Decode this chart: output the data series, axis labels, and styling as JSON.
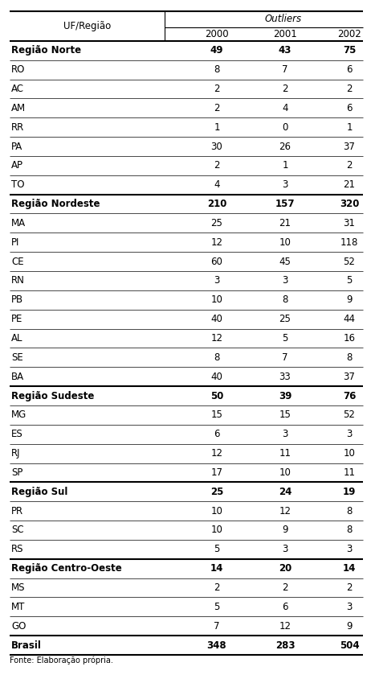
{
  "outliers_label": "Outliers",
  "header_years": [
    "2000",
    "2001",
    "2002"
  ],
  "rows": [
    {
      "label": "Região Norte",
      "bold": true,
      "v2000": "49",
      "v2001": "43",
      "v2002": "75",
      "region": true
    },
    {
      "label": "RO",
      "bold": false,
      "v2000": "8",
      "v2001": "7",
      "v2002": "6",
      "region": false
    },
    {
      "label": "AC",
      "bold": false,
      "v2000": "2",
      "v2001": "2",
      "v2002": "2",
      "region": false
    },
    {
      "label": "AM",
      "bold": false,
      "v2000": "2",
      "v2001": "4",
      "v2002": "6",
      "region": false
    },
    {
      "label": "RR",
      "bold": false,
      "v2000": "1",
      "v2001": "0",
      "v2002": "1",
      "region": false
    },
    {
      "label": "PA",
      "bold": false,
      "v2000": "30",
      "v2001": "26",
      "v2002": "37",
      "region": false
    },
    {
      "label": "AP",
      "bold": false,
      "v2000": "2",
      "v2001": "1",
      "v2002": "2",
      "region": false
    },
    {
      "label": "TO",
      "bold": false,
      "v2000": "4",
      "v2001": "3",
      "v2002": "21",
      "region": false
    },
    {
      "label": "Região Nordeste",
      "bold": true,
      "v2000": "210",
      "v2001": "157",
      "v2002": "320",
      "region": true
    },
    {
      "label": "MA",
      "bold": false,
      "v2000": "25",
      "v2001": "21",
      "v2002": "31",
      "region": false
    },
    {
      "label": "PI",
      "bold": false,
      "v2000": "12",
      "v2001": "10",
      "v2002": "118",
      "region": false
    },
    {
      "label": "CE",
      "bold": false,
      "v2000": "60",
      "v2001": "45",
      "v2002": "52",
      "region": false
    },
    {
      "label": "RN",
      "bold": false,
      "v2000": "3",
      "v2001": "3",
      "v2002": "5",
      "region": false
    },
    {
      "label": "PB",
      "bold": false,
      "v2000": "10",
      "v2001": "8",
      "v2002": "9",
      "region": false
    },
    {
      "label": "PE",
      "bold": false,
      "v2000": "40",
      "v2001": "25",
      "v2002": "44",
      "region": false
    },
    {
      "label": "AL",
      "bold": false,
      "v2000": "12",
      "v2001": "5",
      "v2002": "16",
      "region": false
    },
    {
      "label": "SE",
      "bold": false,
      "v2000": "8",
      "v2001": "7",
      "v2002": "8",
      "region": false
    },
    {
      "label": "BA",
      "bold": false,
      "v2000": "40",
      "v2001": "33",
      "v2002": "37",
      "region": false
    },
    {
      "label": "Região Sudeste",
      "bold": true,
      "v2000": "50",
      "v2001": "39",
      "v2002": "76",
      "region": true
    },
    {
      "label": "MG",
      "bold": false,
      "v2000": "15",
      "v2001": "15",
      "v2002": "52",
      "region": false
    },
    {
      "label": "ES",
      "bold": false,
      "v2000": "6",
      "v2001": "3",
      "v2002": "3",
      "region": false
    },
    {
      "label": "RJ",
      "bold": false,
      "v2000": "12",
      "v2001": "11",
      "v2002": "10",
      "region": false
    },
    {
      "label": "SP",
      "bold": false,
      "v2000": "17",
      "v2001": "10",
      "v2002": "11",
      "region": false
    },
    {
      "label": "Região Sul",
      "bold": true,
      "v2000": "25",
      "v2001": "24",
      "v2002": "19",
      "region": true
    },
    {
      "label": "PR",
      "bold": false,
      "v2000": "10",
      "v2001": "12",
      "v2002": "8",
      "region": false
    },
    {
      "label": "SC",
      "bold": false,
      "v2000": "10",
      "v2001": "9",
      "v2002": "8",
      "region": false
    },
    {
      "label": "RS",
      "bold": false,
      "v2000": "5",
      "v2001": "3",
      "v2002": "3",
      "region": false
    },
    {
      "label": "Região Centro-Oeste",
      "bold": true,
      "v2000": "14",
      "v2001": "20",
      "v2002": "14",
      "region": true
    },
    {
      "label": "MS",
      "bold": false,
      "v2000": "2",
      "v2001": "2",
      "v2002": "2",
      "region": false
    },
    {
      "label": "MT",
      "bold": false,
      "v2000": "5",
      "v2001": "6",
      "v2002": "3",
      "region": false
    },
    {
      "label": "GO",
      "bold": false,
      "v2000": "7",
      "v2001": "12",
      "v2002": "9",
      "region": false
    },
    {
      "label": "Brasil",
      "bold": true,
      "v2000": "348",
      "v2001": "283",
      "v2002": "504",
      "region": true
    }
  ],
  "fonte_text": "Fonte: Elaboração própria.",
  "bg_color": "#ffffff",
  "text_color": "#000000",
  "font_size": 8.5,
  "fonte_font_size": 7.0
}
